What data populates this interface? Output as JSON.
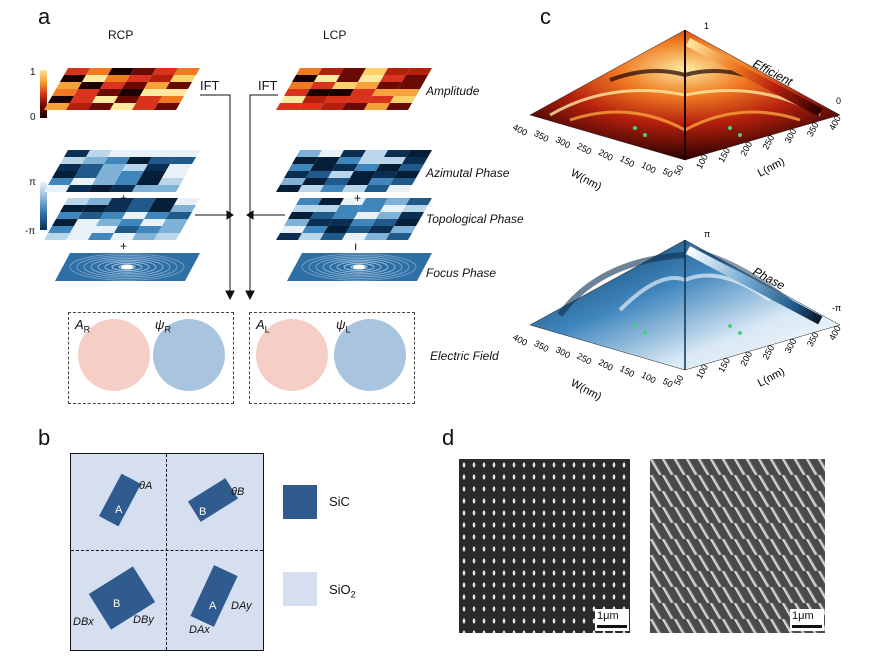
{
  "figure": {
    "panels": {
      "a": {
        "label": "a",
        "columns": [
          "RCP",
          "LCP"
        ],
        "ift_label": "IFT",
        "row_labels": [
          "Amplitude",
          "Azimutal Phase",
          "Topological Phase",
          "Focus Phase",
          "Electric Field"
        ],
        "amp_scale": {
          "max": "1",
          "min": "0"
        },
        "phase_scale": {
          "max": "π",
          "min": "-π"
        },
        "ops": {
          "plus": "+",
          "bar": "ı"
        },
        "field_labels": {
          "rcp_amp": "A",
          "rcp_amp_sub": "R",
          "rcp_phase": "ψ",
          "rcp_phase_sub": "R",
          "lcp_amp": "A",
          "lcp_amp_sub": "L",
          "lcp_phase": "ψ",
          "lcp_phase_sub": "L"
        }
      },
      "b": {
        "label": "b",
        "legend": [
          {
            "name": "SiC",
            "color": "#2f5b8f"
          },
          {
            "name": "SiO",
            "sub": "2",
            "color": "#d5dff0"
          }
        ],
        "cells": [
          "A",
          "B",
          "B",
          "A"
        ],
        "angles": [
          "θA",
          "θB"
        ],
        "dims": [
          "DBx",
          "DBy",
          "DAx",
          "DAy"
        ]
      },
      "c": {
        "label": "c",
        "top": {
          "title": "Efficient",
          "max": "1",
          "min": "0"
        },
        "bottom": {
          "title": "Phase",
          "max": "π",
          "min": "-π"
        },
        "x_axis_label": "L(nm)",
        "y_axis_label": "W(nm)",
        "ticks": [
          "400",
          "350",
          "300",
          "250",
          "200",
          "150",
          "100",
          "50"
        ],
        "x_ticks": [
          "50",
          "100",
          "150",
          "200",
          "250",
          "300",
          "350",
          "400"
        ]
      },
      "d": {
        "label": "d",
        "scale_bars": [
          "1μm",
          "1μm"
        ]
      }
    },
    "colors": {
      "hot_dark": "#2a0000",
      "hot_mid": "#e2481d",
      "hot_light": "#fbe7a1",
      "blue_dark": "#0b2f52",
      "blue_mid": "#2e6fa6",
      "blue_light": "#e8f1f8",
      "field_pink": "#f5cfc5",
      "field_blue": "#a9c4de"
    }
  }
}
